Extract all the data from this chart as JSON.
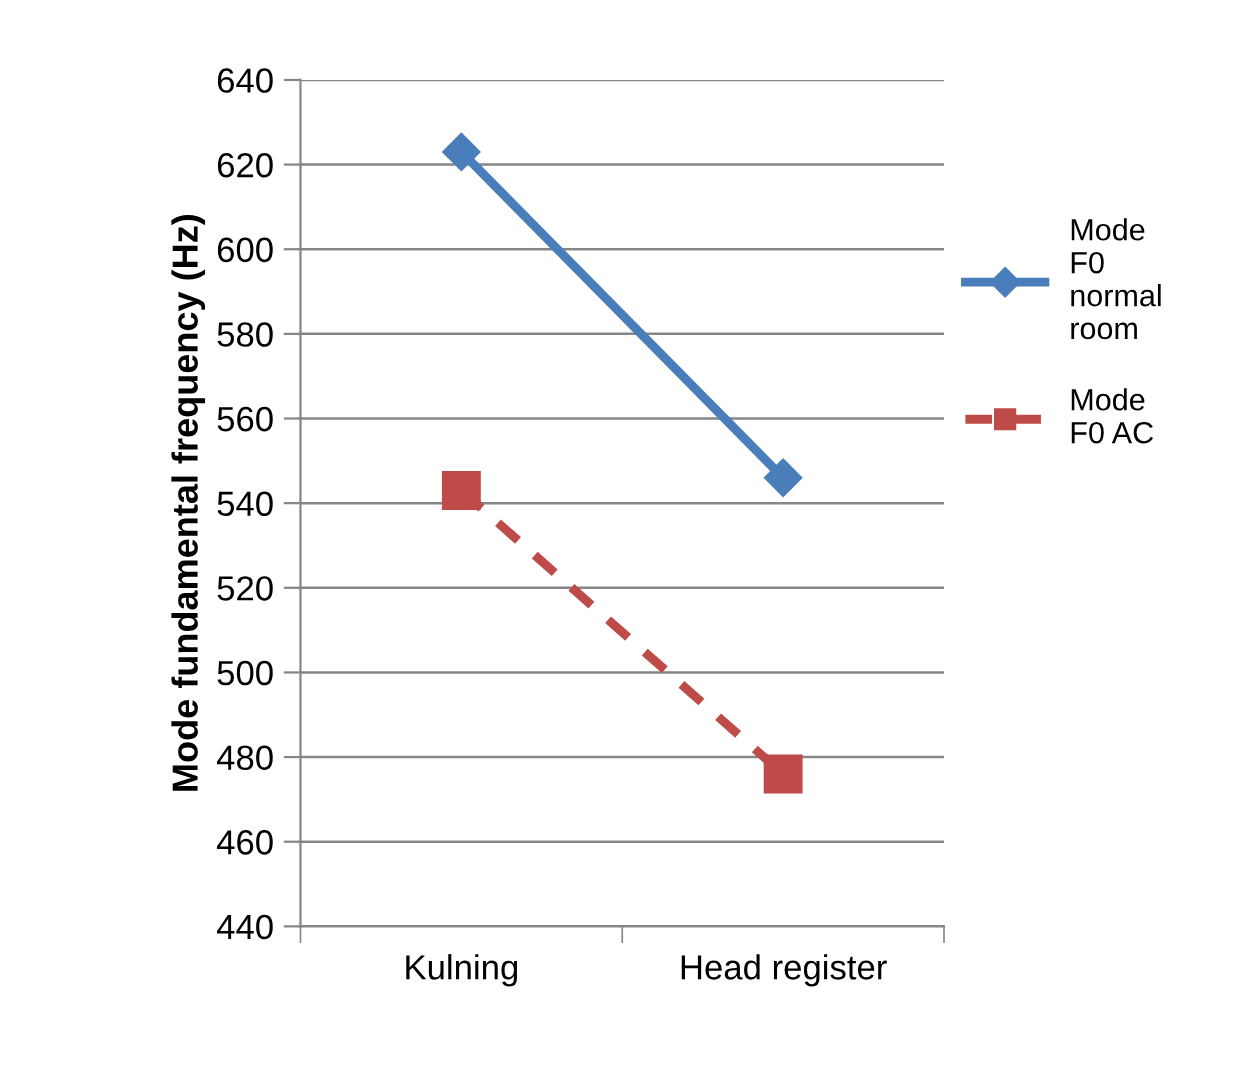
{
  "chart_data": {
    "type": "line",
    "ylabel": "Mode fundamental frequency (Hz)",
    "categories": [
      "Kulning",
      "Head register"
    ],
    "series": [
      {
        "name": "Mode F0 normal room",
        "color": "#4a7ebb",
        "values": [
          623,
          546
        ],
        "marker": "diamond",
        "line_style": "solid"
      },
      {
        "name": "Mode F0 AC",
        "color": "#be4b48",
        "values": [
          543,
          476
        ],
        "marker": "square",
        "line_style": "dashed"
      }
    ],
    "ylim": [
      440,
      640
    ],
    "yticks": [
      440,
      460,
      480,
      500,
      520,
      540,
      560,
      580,
      600,
      620,
      640
    ],
    "grid": "y",
    "legend": "right"
  }
}
